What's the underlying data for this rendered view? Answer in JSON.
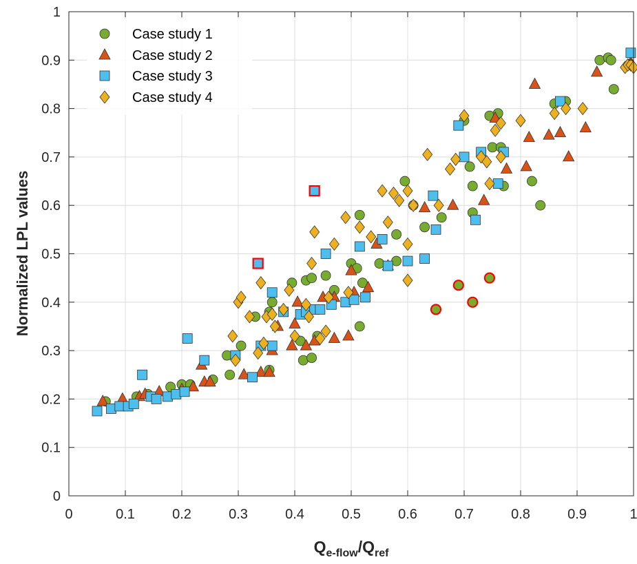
{
  "chart_data": {
    "type": "scatter",
    "title": "",
    "xlabel": "Q_{e-flow}/Q_{ref}",
    "xlabel_parts": {
      "main1": "Q",
      "sub1": "e-flow",
      "slash": "/",
      "main2": "Q",
      "sub2": "ref"
    },
    "ylabel": "Normalized LPL values",
    "xlim": [
      0,
      1
    ],
    "ylim": [
      0,
      1
    ],
    "x_ticks": [
      "0",
      "0.1",
      "0.2",
      "0.3",
      "0.4",
      "0.5",
      "0.6",
      "0.7",
      "0.8",
      "0.9",
      "1"
    ],
    "y_ticks": [
      "0",
      "0.1",
      "0.2",
      "0.3",
      "0.4",
      "0.5",
      "0.6",
      "0.7",
      "0.8",
      "0.9",
      "1"
    ],
    "grid": true,
    "legend_position": "top-left",
    "series": [
      {
        "name": "Case study 1",
        "marker": "circle",
        "color": "#77ac30",
        "points": [
          [
            0.065,
            0.195
          ],
          [
            0.12,
            0.205
          ],
          [
            0.14,
            0.21
          ],
          [
            0.18,
            0.225
          ],
          [
            0.2,
            0.23
          ],
          [
            0.215,
            0.23
          ],
          [
            0.255,
            0.24
          ],
          [
            0.28,
            0.29
          ],
          [
            0.285,
            0.25
          ],
          [
            0.305,
            0.31
          ],
          [
            0.33,
            0.37
          ],
          [
            0.355,
            0.38
          ],
          [
            0.355,
            0.26
          ],
          [
            0.36,
            0.4
          ],
          [
            0.395,
            0.44
          ],
          [
            0.41,
            0.32
          ],
          [
            0.415,
            0.28
          ],
          [
            0.42,
            0.445
          ],
          [
            0.43,
            0.285
          ],
          [
            0.43,
            0.45
          ],
          [
            0.44,
            0.33
          ],
          [
            0.455,
            0.455
          ],
          [
            0.47,
            0.425
          ],
          [
            0.5,
            0.48
          ],
          [
            0.51,
            0.47
          ],
          [
            0.515,
            0.35
          ],
          [
            0.515,
            0.58
          ],
          [
            0.52,
            0.44
          ],
          [
            0.55,
            0.48
          ],
          [
            0.58,
            0.485
          ],
          [
            0.58,
            0.54
          ],
          [
            0.595,
            0.65
          ],
          [
            0.61,
            0.6
          ],
          [
            0.63,
            0.555
          ],
          [
            0.66,
            0.575
          ],
          [
            0.7,
            0.775
          ],
          [
            0.71,
            0.68
          ],
          [
            0.715,
            0.64
          ],
          [
            0.715,
            0.585
          ],
          [
            0.745,
            0.785
          ],
          [
            0.75,
            0.72
          ],
          [
            0.76,
            0.79
          ],
          [
            0.765,
            0.72
          ],
          [
            0.77,
            0.64
          ],
          [
            0.82,
            0.65
          ],
          [
            0.835,
            0.6
          ],
          [
            0.86,
            0.81
          ],
          [
            0.88,
            0.815
          ],
          [
            0.94,
            0.9
          ],
          [
            0.955,
            0.905
          ],
          [
            0.965,
            0.84
          ],
          [
            0.96,
            0.9
          ]
        ]
      },
      {
        "name": "Case study 2",
        "marker": "triangle",
        "color": "#d95319",
        "points": [
          [
            0.06,
            0.195
          ],
          [
            0.095,
            0.2
          ],
          [
            0.125,
            0.205
          ],
          [
            0.135,
            0.21
          ],
          [
            0.16,
            0.215
          ],
          [
            0.2,
            0.22
          ],
          [
            0.22,
            0.225
          ],
          [
            0.235,
            0.27
          ],
          [
            0.24,
            0.235
          ],
          [
            0.25,
            0.235
          ],
          [
            0.31,
            0.25
          ],
          [
            0.34,
            0.255
          ],
          [
            0.355,
            0.255
          ],
          [
            0.36,
            0.3
          ],
          [
            0.37,
            0.35
          ],
          [
            0.395,
            0.31
          ],
          [
            0.4,
            0.355
          ],
          [
            0.405,
            0.4
          ],
          [
            0.42,
            0.31
          ],
          [
            0.435,
            0.32
          ],
          [
            0.45,
            0.41
          ],
          [
            0.47,
            0.41
          ],
          [
            0.47,
            0.325
          ],
          [
            0.495,
            0.33
          ],
          [
            0.5,
            0.465
          ],
          [
            0.505,
            0.42
          ],
          [
            0.53,
            0.43
          ],
          [
            0.545,
            0.52
          ],
          [
            0.565,
            0.475
          ],
          [
            0.63,
            0.595
          ],
          [
            0.68,
            0.6
          ],
          [
            0.735,
            0.61
          ],
          [
            0.755,
            0.78
          ],
          [
            0.775,
            0.675
          ],
          [
            0.81,
            0.68
          ],
          [
            0.815,
            0.74
          ],
          [
            0.825,
            0.85
          ],
          [
            0.85,
            0.745
          ],
          [
            0.87,
            0.75
          ],
          [
            0.885,
            0.7
          ],
          [
            0.915,
            0.76
          ],
          [
            0.935,
            0.875
          ],
          [
            0.995,
            0.895
          ]
        ]
      },
      {
        "name": "Case study 3",
        "marker": "square",
        "color": "#4dbeee",
        "points": [
          [
            0.05,
            0.175
          ],
          [
            0.075,
            0.18
          ],
          [
            0.09,
            0.185
          ],
          [
            0.105,
            0.185
          ],
          [
            0.115,
            0.19
          ],
          [
            0.13,
            0.25
          ],
          [
            0.145,
            0.205
          ],
          [
            0.155,
            0.2
          ],
          [
            0.175,
            0.205
          ],
          [
            0.19,
            0.21
          ],
          [
            0.205,
            0.215
          ],
          [
            0.21,
            0.325
          ],
          [
            0.24,
            0.28
          ],
          [
            0.295,
            0.29
          ],
          [
            0.325,
            0.245
          ],
          [
            0.34,
            0.31
          ],
          [
            0.36,
            0.42
          ],
          [
            0.36,
            0.31
          ],
          [
            0.38,
            0.38
          ],
          [
            0.41,
            0.375
          ],
          [
            0.42,
            0.38
          ],
          [
            0.435,
            0.385
          ],
          [
            0.445,
            0.385
          ],
          [
            0.455,
            0.5
          ],
          [
            0.465,
            0.395
          ],
          [
            0.49,
            0.4
          ],
          [
            0.505,
            0.405
          ],
          [
            0.515,
            0.515
          ],
          [
            0.525,
            0.41
          ],
          [
            0.555,
            0.53
          ],
          [
            0.565,
            0.475
          ],
          [
            0.6,
            0.485
          ],
          [
            0.63,
            0.49
          ],
          [
            0.645,
            0.62
          ],
          [
            0.65,
            0.55
          ],
          [
            0.69,
            0.765
          ],
          [
            0.7,
            0.7
          ],
          [
            0.72,
            0.57
          ],
          [
            0.73,
            0.71
          ],
          [
            0.76,
            0.645
          ],
          [
            0.77,
            0.71
          ],
          [
            0.87,
            0.815
          ],
          [
            0.995,
            0.915
          ]
        ]
      },
      {
        "name": "Case study 4",
        "marker": "diamond",
        "color": "#edb120",
        "points": [
          [
            0.29,
            0.33
          ],
          [
            0.295,
            0.28
          ],
          [
            0.3,
            0.4
          ],
          [
            0.305,
            0.41
          ],
          [
            0.32,
            0.37
          ],
          [
            0.335,
            0.295
          ],
          [
            0.34,
            0.44
          ],
          [
            0.345,
            0.315
          ],
          [
            0.35,
            0.37
          ],
          [
            0.36,
            0.375
          ],
          [
            0.365,
            0.35
          ],
          [
            0.38,
            0.385
          ],
          [
            0.39,
            0.425
          ],
          [
            0.4,
            0.33
          ],
          [
            0.42,
            0.395
          ],
          [
            0.425,
            0.37
          ],
          [
            0.43,
            0.48
          ],
          [
            0.435,
            0.545
          ],
          [
            0.445,
            0.325
          ],
          [
            0.455,
            0.34
          ],
          [
            0.46,
            0.41
          ],
          [
            0.47,
            0.52
          ],
          [
            0.49,
            0.575
          ],
          [
            0.495,
            0.42
          ],
          [
            0.515,
            0.555
          ],
          [
            0.535,
            0.535
          ],
          [
            0.555,
            0.63
          ],
          [
            0.565,
            0.565
          ],
          [
            0.575,
            0.625
          ],
          [
            0.585,
            0.61
          ],
          [
            0.6,
            0.445
          ],
          [
            0.6,
            0.52
          ],
          [
            0.6,
            0.63
          ],
          [
            0.61,
            0.6
          ],
          [
            0.635,
            0.705
          ],
          [
            0.655,
            0.6
          ],
          [
            0.675,
            0.675
          ],
          [
            0.685,
            0.695
          ],
          [
            0.7,
            0.785
          ],
          [
            0.73,
            0.7
          ],
          [
            0.74,
            0.69
          ],
          [
            0.745,
            0.645
          ],
          [
            0.755,
            0.755
          ],
          [
            0.765,
            0.77
          ],
          [
            0.765,
            0.7
          ],
          [
            0.8,
            0.775
          ],
          [
            0.86,
            0.79
          ],
          [
            0.88,
            0.8
          ],
          [
            0.91,
            0.8
          ],
          [
            0.985,
            0.885
          ],
          [
            0.99,
            0.89
          ],
          [
            0.995,
            0.89
          ],
          [
            1.0,
            0.885
          ]
        ]
      }
    ],
    "highlighted_points": [
      {
        "marker": "square",
        "color": "#4dbeee",
        "edge": "#ff0000",
        "x": 0.335,
        "y": 0.48
      },
      {
        "marker": "square",
        "color": "#4dbeee",
        "edge": "#ff0000",
        "x": 0.435,
        "y": 0.63
      },
      {
        "marker": "circle",
        "color": "#77ac30",
        "edge": "#ff0000",
        "x": 0.65,
        "y": 0.385
      },
      {
        "marker": "circle",
        "color": "#77ac30",
        "edge": "#ff0000",
        "x": 0.69,
        "y": 0.435
      },
      {
        "marker": "circle",
        "color": "#77ac30",
        "edge": "#ff0000",
        "x": 0.715,
        "y": 0.4
      },
      {
        "marker": "circle",
        "color": "#77ac30",
        "edge": "#ff0000",
        "x": 0.745,
        "y": 0.45
      }
    ]
  }
}
